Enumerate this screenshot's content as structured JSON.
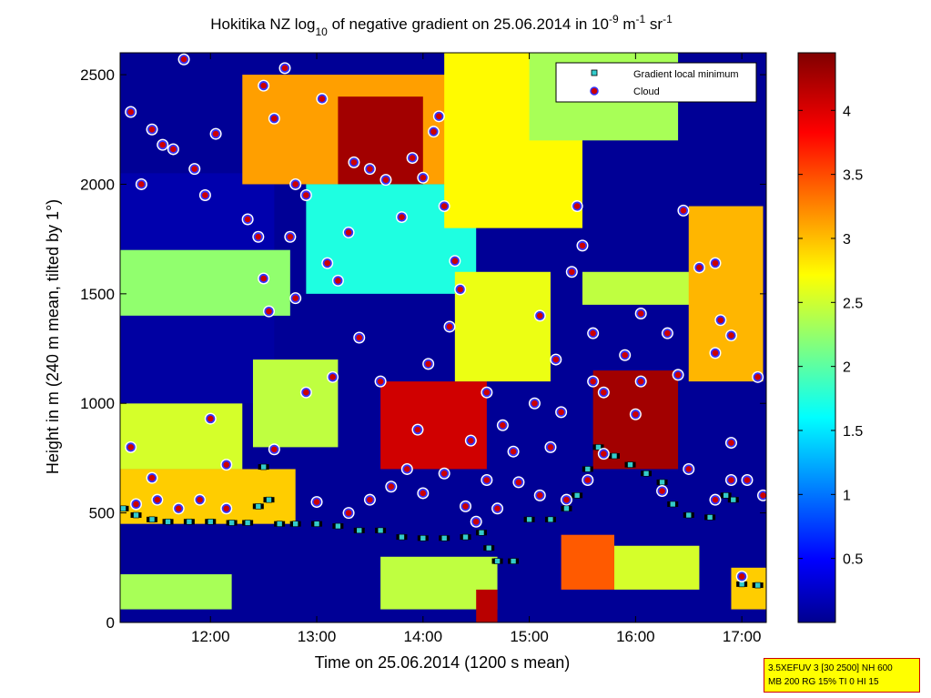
{
  "chart_data": {
    "type": "heatmap",
    "title": {
      "part1": "Hokitika NZ log",
      "sub": "10",
      "part2": " of negative gradient on 25.06.2014 in 10",
      "sup1": "-9",
      "part3": " m",
      "sup2": "-1",
      "part4": " sr",
      "sup3": "-1"
    },
    "xlabel": "Time on 25.06.2014 (1200 s mean)",
    "ylabel": "Height in m (240 m mean, tilted by 1°)",
    "xlim": [
      11.15,
      17.23
    ],
    "ylim": [
      0,
      2600
    ],
    "x_ticks": [
      {
        "value": 12,
        "label": "12:00"
      },
      {
        "value": 13,
        "label": "13:00"
      },
      {
        "value": 14,
        "label": "14:00"
      },
      {
        "value": 15,
        "label": "15:00"
      },
      {
        "value": 16,
        "label": "16:00"
      },
      {
        "value": 17,
        "label": "17:00"
      }
    ],
    "y_ticks": [
      {
        "value": 0,
        "label": "0"
      },
      {
        "value": 500,
        "label": "500"
      },
      {
        "value": 1000,
        "label": "1000"
      },
      {
        "value": 1500,
        "label": "1500"
      },
      {
        "value": 2000,
        "label": "2000"
      },
      {
        "value": 2500,
        "label": "2500"
      }
    ],
    "colorbar": {
      "range": [
        0,
        4.45
      ],
      "ticks": [
        {
          "value": 0.5,
          "label": "0.5"
        },
        {
          "value": 1,
          "label": "1"
        },
        {
          "value": 1.5,
          "label": "1.5"
        },
        {
          "value": 2,
          "label": "2"
        },
        {
          "value": 2.5,
          "label": "2.5"
        },
        {
          "value": 3,
          "label": "3"
        },
        {
          "value": 3.5,
          "label": "3.5"
        },
        {
          "value": 4,
          "label": "4"
        }
      ],
      "colormap": "jet"
    },
    "legend": {
      "placement": "top-right",
      "entries": [
        {
          "label": "Gradient local minimum",
          "marker": "square",
          "color": "#33cccc"
        },
        {
          "label": "Cloud",
          "marker": "circle",
          "color": "#cc0000"
        }
      ]
    },
    "background_regions": [
      {
        "t0": 11.15,
        "t1": 17.23,
        "h0": 0,
        "h1": 2600,
        "v": 0.1
      },
      {
        "t0": 11.15,
        "t1": 12.6,
        "h0": 1700,
        "h1": 2050,
        "v": 0.2
      },
      {
        "t0": 11.15,
        "t1": 12.75,
        "h0": 1400,
        "h1": 1700,
        "v": 2.3
      },
      {
        "t0": 11.15,
        "t1": 12.3,
        "h0": 700,
        "h1": 1000,
        "v": 2.6
      },
      {
        "t0": 11.15,
        "t1": 12.6,
        "h0": 1000,
        "h1": 1400,
        "v": 0.15
      },
      {
        "t0": 11.15,
        "t1": 12.8,
        "h0": 450,
        "h1": 700,
        "v": 3.0
      },
      {
        "t0": 12.3,
        "t1": 14.8,
        "h0": 2000,
        "h1": 2500,
        "v": 3.2
      },
      {
        "t0": 13.2,
        "t1": 14.0,
        "h0": 2000,
        "h1": 2400,
        "v": 4.3
      },
      {
        "t0": 12.4,
        "t1": 13.2,
        "h0": 800,
        "h1": 1200,
        "v": 2.5
      },
      {
        "t0": 12.9,
        "t1": 14.5,
        "h0": 1500,
        "h1": 2000,
        "v": 1.8
      },
      {
        "t0": 13.6,
        "t1": 14.6,
        "h0": 700,
        "h1": 1100,
        "v": 4.1
      },
      {
        "t0": 14.3,
        "t1": 15.2,
        "h0": 1100,
        "h1": 1600,
        "v": 2.7
      },
      {
        "t0": 14.2,
        "t1": 15.5,
        "h0": 1800,
        "h1": 2600,
        "v": 2.8
      },
      {
        "t0": 15.0,
        "t1": 16.4,
        "h0": 2200,
        "h1": 2600,
        "v": 2.4
      },
      {
        "t0": 15.5,
        "t1": 17.0,
        "h0": 1450,
        "h1": 1600,
        "v": 2.5
      },
      {
        "t0": 15.6,
        "t1": 16.4,
        "h0": 700,
        "h1": 1150,
        "v": 4.3
      },
      {
        "t0": 16.5,
        "t1": 17.2,
        "h0": 1100,
        "h1": 1900,
        "v": 3.1
      },
      {
        "t0": 15.3,
        "t1": 15.8,
        "h0": 150,
        "h1": 400,
        "v": 3.5
      },
      {
        "t0": 15.8,
        "t1": 16.6,
        "h0": 150,
        "h1": 350,
        "v": 2.6
      },
      {
        "t0": 16.9,
        "t1": 17.23,
        "h0": 60,
        "h1": 250,
        "v": 3.0
      },
      {
        "t0": 13.6,
        "t1": 14.7,
        "h0": 60,
        "h1": 300,
        "v": 2.5
      },
      {
        "t0": 11.15,
        "t1": 12.2,
        "h0": 60,
        "h1": 220,
        "v": 2.4
      },
      {
        "t0": 14.5,
        "t1": 14.7,
        "h0": 0,
        "h1": 150,
        "v": 4.2
      }
    ],
    "gradient_minimum": [
      {
        "t": 11.18,
        "h": 520
      },
      {
        "t": 11.3,
        "h": 490
      },
      {
        "t": 11.45,
        "h": 470
      },
      {
        "t": 11.6,
        "h": 460
      },
      {
        "t": 11.8,
        "h": 460
      },
      {
        "t": 12.0,
        "h": 460
      },
      {
        "t": 12.2,
        "h": 455
      },
      {
        "t": 12.35,
        "h": 455
      },
      {
        "t": 12.45,
        "h": 530
      },
      {
        "t": 12.5,
        "h": 710
      },
      {
        "t": 12.55,
        "h": 560
      },
      {
        "t": 12.65,
        "h": 450
      },
      {
        "t": 12.8,
        "h": 450
      },
      {
        "t": 13.0,
        "h": 450
      },
      {
        "t": 13.2,
        "h": 440
      },
      {
        "t": 13.4,
        "h": 420
      },
      {
        "t": 13.6,
        "h": 420
      },
      {
        "t": 13.8,
        "h": 390
      },
      {
        "t": 14.0,
        "h": 385
      },
      {
        "t": 14.2,
        "h": 385
      },
      {
        "t": 14.4,
        "h": 390
      },
      {
        "t": 14.55,
        "h": 410
      },
      {
        "t": 14.62,
        "h": 340
      },
      {
        "t": 14.7,
        "h": 280
      },
      {
        "t": 14.85,
        "h": 280
      },
      {
        "t": 15.0,
        "h": 470
      },
      {
        "t": 15.2,
        "h": 470
      },
      {
        "t": 15.35,
        "h": 520
      },
      {
        "t": 15.45,
        "h": 580
      },
      {
        "t": 15.55,
        "h": 700
      },
      {
        "t": 15.65,
        "h": 800
      },
      {
        "t": 15.8,
        "h": 760
      },
      {
        "t": 15.95,
        "h": 720
      },
      {
        "t": 16.1,
        "h": 680
      },
      {
        "t": 16.25,
        "h": 640
      },
      {
        "t": 16.35,
        "h": 540
      },
      {
        "t": 16.5,
        "h": 490
      },
      {
        "t": 16.7,
        "h": 480
      },
      {
        "t": 16.85,
        "h": 580
      },
      {
        "t": 16.92,
        "h": 560
      },
      {
        "t": 17.0,
        "h": 175
      },
      {
        "t": 17.15,
        "h": 170
      }
    ],
    "clouds": [
      {
        "t": 11.25,
        "h": 2330
      },
      {
        "t": 11.35,
        "h": 2000
      },
      {
        "t": 11.45,
        "h": 2250
      },
      {
        "t": 11.55,
        "h": 2180
      },
      {
        "t": 11.65,
        "h": 2160
      },
      {
        "t": 11.75,
        "h": 2570
      },
      {
        "t": 11.85,
        "h": 2070
      },
      {
        "t": 12.05,
        "h": 2230
      },
      {
        "t": 11.95,
        "h": 1950
      },
      {
        "t": 12.35,
        "h": 1840
      },
      {
        "t": 12.5,
        "h": 2450
      },
      {
        "t": 12.6,
        "h": 2300
      },
      {
        "t": 12.45,
        "h": 1760
      },
      {
        "t": 12.7,
        "h": 2530
      },
      {
        "t": 12.8,
        "h": 2000
      },
      {
        "t": 12.9,
        "h": 1950
      },
      {
        "t": 13.05,
        "h": 2390
      },
      {
        "t": 13.1,
        "h": 1640
      },
      {
        "t": 12.5,
        "h": 1570
      },
      {
        "t": 12.75,
        "h": 1760
      },
      {
        "t": 12.8,
        "h": 1480
      },
      {
        "t": 12.55,
        "h": 1420
      },
      {
        "t": 13.2,
        "h": 1560
      },
      {
        "t": 13.35,
        "h": 2100
      },
      {
        "t": 13.5,
        "h": 2070
      },
      {
        "t": 13.65,
        "h": 2020
      },
      {
        "t": 13.8,
        "h": 1850
      },
      {
        "t": 13.9,
        "h": 2120
      },
      {
        "t": 14.1,
        "h": 2240
      },
      {
        "t": 14.0,
        "h": 2030
      },
      {
        "t": 14.15,
        "h": 2310
      },
      {
        "t": 14.2,
        "h": 1900
      },
      {
        "t": 14.3,
        "h": 1650
      },
      {
        "t": 14.35,
        "h": 1520
      },
      {
        "t": 14.25,
        "h": 1350
      },
      {
        "t": 13.3,
        "h": 1780
      },
      {
        "t": 13.4,
        "h": 1300
      },
      {
        "t": 13.15,
        "h": 1120
      },
      {
        "t": 12.9,
        "h": 1050
      },
      {
        "t": 12.0,
        "h": 930
      },
      {
        "t": 11.25,
        "h": 800
      },
      {
        "t": 11.45,
        "h": 660
      },
      {
        "t": 12.15,
        "h": 720
      },
      {
        "t": 12.6,
        "h": 790
      },
      {
        "t": 11.3,
        "h": 540
      },
      {
        "t": 11.5,
        "h": 560
      },
      {
        "t": 11.7,
        "h": 520
      },
      {
        "t": 11.9,
        "h": 560
      },
      {
        "t": 12.15,
        "h": 520
      },
      {
        "t": 13.0,
        "h": 550
      },
      {
        "t": 13.3,
        "h": 500
      },
      {
        "t": 13.5,
        "h": 560
      },
      {
        "t": 13.7,
        "h": 620
      },
      {
        "t": 13.85,
        "h": 700
      },
      {
        "t": 14.0,
        "h": 590
      },
      {
        "t": 14.2,
        "h": 680
      },
      {
        "t": 14.4,
        "h": 530
      },
      {
        "t": 14.5,
        "h": 460
      },
      {
        "t": 14.7,
        "h": 520
      },
      {
        "t": 14.9,
        "h": 640
      },
      {
        "t": 15.1,
        "h": 580
      },
      {
        "t": 15.2,
        "h": 800
      },
      {
        "t": 15.3,
        "h": 960
      },
      {
        "t": 15.25,
        "h": 1200
      },
      {
        "t": 15.1,
        "h": 1400
      },
      {
        "t": 15.4,
        "h": 1600
      },
      {
        "t": 15.5,
        "h": 1720
      },
      {
        "t": 15.45,
        "h": 1900
      },
      {
        "t": 15.6,
        "h": 1320
      },
      {
        "t": 15.6,
        "h": 1100
      },
      {
        "t": 15.7,
        "h": 1050
      },
      {
        "t": 15.9,
        "h": 1220
      },
      {
        "t": 16.05,
        "h": 1410
      },
      {
        "t": 16.05,
        "h": 1100
      },
      {
        "t": 16.3,
        "h": 1320
      },
      {
        "t": 16.4,
        "h": 1130
      },
      {
        "t": 16.45,
        "h": 1880
      },
      {
        "t": 16.6,
        "h": 1620
      },
      {
        "t": 16.75,
        "h": 1640
      },
      {
        "t": 16.8,
        "h": 1380
      },
      {
        "t": 16.9,
        "h": 1310
      },
      {
        "t": 16.75,
        "h": 1230
      },
      {
        "t": 17.15,
        "h": 1120
      },
      {
        "t": 16.9,
        "h": 820
      },
      {
        "t": 16.9,
        "h": 650
      },
      {
        "t": 17.05,
        "h": 650
      },
      {
        "t": 17.2,
        "h": 580
      },
      {
        "t": 17.0,
        "h": 210
      },
      {
        "t": 14.6,
        "h": 1050
      },
      {
        "t": 14.6,
        "h": 650
      },
      {
        "t": 14.75,
        "h": 900
      },
      {
        "t": 14.85,
        "h": 780
      },
      {
        "t": 15.05,
        "h": 1000
      },
      {
        "t": 14.45,
        "h": 830
      },
      {
        "t": 13.95,
        "h": 880
      },
      {
        "t": 13.6,
        "h": 1100
      },
      {
        "t": 14.05,
        "h": 1180
      },
      {
        "t": 15.35,
        "h": 560
      },
      {
        "t": 15.55,
        "h": 650
      },
      {
        "t": 15.7,
        "h": 770
      },
      {
        "t": 16.0,
        "h": 950
      },
      {
        "t": 16.25,
        "h": 600
      },
      {
        "t": 16.5,
        "h": 700
      },
      {
        "t": 16.75,
        "h": 560
      }
    ],
    "info_box": {
      "line1": "3.5XEFUV 3 [30 2500] NH 600",
      "line2": "MB 200 RG 15% TI 0 HI 15"
    }
  }
}
